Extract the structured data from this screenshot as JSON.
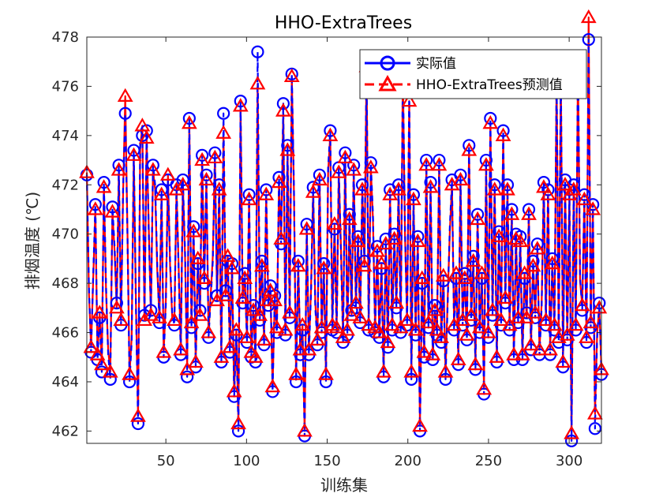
{
  "chart_data": {
    "type": "line",
    "title": "HHO-ExtraTrees",
    "xlabel": "训练集",
    "ylabel": "排烟温度 (℃)",
    "xlim": [
      1,
      320
    ],
    "ylim": [
      461.5,
      478
    ],
    "xticks": [
      50,
      100,
      150,
      200,
      250,
      300
    ],
    "yticks": [
      462,
      464,
      466,
      468,
      470,
      472,
      474,
      476,
      478
    ],
    "grid": false,
    "legend_position": "top-right",
    "colors": {
      "actual": "#0000ff",
      "predicted": "#ff0000"
    },
    "series": [
      {
        "name": "实际值",
        "style": "solid line with circle markers",
        "color": "#0000ff",
        "values": [
          472.4,
          467.8,
          465.2,
          468.4,
          471.2,
          464.9,
          466.6,
          464.4,
          472.1,
          467.9,
          465.1,
          464.1,
          471.1,
          469.5,
          467.2,
          472.8,
          466.3,
          471.9,
          474.9,
          470.1,
          464.0,
          465.6,
          473.4,
          467.0,
          462.3,
          473.7,
          474.0,
          466.7,
          474.2,
          470.1,
          466.9,
          472.8,
          472.0,
          468.7,
          466.4,
          471.8,
          465.0,
          467.1,
          472.2,
          468.9,
          466.8,
          466.3,
          472.0,
          468.5,
          465.1,
          472.2,
          469.3,
          464.2,
          474.7,
          466.2,
          470.3,
          464.6,
          468.8,
          466.9,
          473.2,
          468.0,
          472.4,
          465.8,
          467.3,
          468.9,
          473.3,
          467.5,
          472.0,
          464.8,
          474.9,
          467.7,
          468.9,
          465.2,
          468.8,
          463.4,
          465.9,
          462.0,
          475.4,
          467.2,
          468.4,
          465.6,
          471.6,
          465.0,
          467.1,
          464.8,
          477.4,
          466.5,
          468.9,
          465.5,
          471.8,
          467.1,
          467.9,
          463.6,
          467.5,
          466.0,
          472.3,
          469.6,
          475.3,
          465.9,
          473.6,
          466.6,
          476.5,
          471.9,
          464.0,
          468.9,
          465.1,
          466.1,
          461.8,
          470.4,
          465.1,
          467.6,
          471.9,
          467.0,
          465.5,
          472.4,
          466.0,
          468.8,
          464.0,
          472.7,
          474.2,
          466.1,
          470.2,
          466.0,
          472.7,
          469.3,
          465.6,
          473.3,
          465.9,
          470.8,
          466.9,
          472.8,
          467.0,
          469.9,
          466.4,
          472.0,
          468.9,
          476.9,
          466.1,
          472.9,
          470.8,
          466.0,
          469.5,
          465.8,
          468.6,
          464.2,
          469.8,
          465.4,
          471.8,
          466.1,
          470.0,
          467.0,
          472.0,
          466.0,
          476.7,
          470.2,
          466.3,
          475.9,
          464.1,
          471.6,
          465.9,
          469.9,
          462.0,
          468.0,
          465.0,
          473.0,
          466.2,
          472.1,
          464.9,
          467.1,
          465.9,
          473.0,
          465.6,
          468.1,
          464.1,
          467.2,
          470.3,
          472.2,
          466.1,
          468.2,
          464.7,
          472.4,
          466.3,
          468.4,
          465.7,
          473.6,
          466.5,
          469.1,
          464.5,
          470.8,
          466.0,
          468.2,
          463.5,
          473.0,
          465.8,
          474.7,
          466.7,
          472.0,
          464.8,
          470.1,
          466.3,
          474.2,
          467.2,
          472.0,
          466.1,
          471.0,
          464.9,
          470.0,
          466.4,
          469.9,
          464.9,
          468.2,
          466.8,
          471.0,
          465.3,
          468.9,
          466.6,
          469.6,
          465.1,
          467.0,
          472.1,
          466.3,
          471.8,
          465.1,
          469.0,
          466.1,
          476.5,
          465.6,
          476.7,
          464.6,
          472.2,
          465.7,
          471.8,
          461.6,
          472.0,
          466.1,
          477.2,
          468.3,
          466.9,
          471.6,
          465.6,
          477.9,
          466.2,
          471.2,
          462.1,
          465.8,
          467.2,
          464.3
        ],
        "x_note": "values sampled at evenly spaced training-set indices 1..320"
      },
      {
        "name": "HHO-ExtraTrees预测值",
        "style": "dashed line with triangle markers",
        "color": "#ff0000",
        "values": [
          472.5,
          467.6,
          465.4,
          468.2,
          471.0,
          465.1,
          466.8,
          464.7,
          471.9,
          467.7,
          465.3,
          464.4,
          470.9,
          469.3,
          467.0,
          472.6,
          466.5,
          471.7,
          475.6,
          470.3,
          464.3,
          465.8,
          473.2,
          467.2,
          462.6,
          473.5,
          474.4,
          466.5,
          473.9,
          470.3,
          466.7,
          472.6,
          471.8,
          468.5,
          466.6,
          471.6,
          465.2,
          467.3,
          472.4,
          468.7,
          466.6,
          466.5,
          471.8,
          468.7,
          465.3,
          472.0,
          469.1,
          464.5,
          474.5,
          466.4,
          470.1,
          464.8,
          469.0,
          466.7,
          473.0,
          468.2,
          472.2,
          466.0,
          467.5,
          469.1,
          473.1,
          467.3,
          471.8,
          465.0,
          474.1,
          467.5,
          469.1,
          465.4,
          468.6,
          463.6,
          466.1,
          462.3,
          475.2,
          467.4,
          468.2,
          465.8,
          471.4,
          465.2,
          466.9,
          465.0,
          476.1,
          466.7,
          468.7,
          465.7,
          471.6,
          467.3,
          467.7,
          463.8,
          467.3,
          466.2,
          472.1,
          469.8,
          475.0,
          466.1,
          473.4,
          466.8,
          476.4,
          471.7,
          464.3,
          468.7,
          465.3,
          466.3,
          462.0,
          470.2,
          465.3,
          467.8,
          471.7,
          467.2,
          465.7,
          472.2,
          466.2,
          468.6,
          464.3,
          472.5,
          474.0,
          466.3,
          470.4,
          466.2,
          472.5,
          469.5,
          465.8,
          473.1,
          466.1,
          470.6,
          466.7,
          472.6,
          467.2,
          469.7,
          466.6,
          471.8,
          468.7,
          476.8,
          466.3,
          472.7,
          470.6,
          466.2,
          469.3,
          466.0,
          468.8,
          464.4,
          469.6,
          465.6,
          471.6,
          466.3,
          469.8,
          467.2,
          471.8,
          466.2,
          476.6,
          470.0,
          466.5,
          475.4,
          464.4,
          471.4,
          466.1,
          469.7,
          462.2,
          468.2,
          465.2,
          472.8,
          466.4,
          471.9,
          465.1,
          466.9,
          466.1,
          472.8,
          465.8,
          468.3,
          464.4,
          467.4,
          470.1,
          472.0,
          466.3,
          468.4,
          464.9,
          472.2,
          466.5,
          468.2,
          465.9,
          473.4,
          466.7,
          468.9,
          464.7,
          470.6,
          466.2,
          468.4,
          463.7,
          472.8,
          466.0,
          474.5,
          466.9,
          471.8,
          465.0,
          469.9,
          466.5,
          474.0,
          467.4,
          471.8,
          466.3,
          470.8,
          465.1,
          469.8,
          466.6,
          469.7,
          465.1,
          468.4,
          466.6,
          470.8,
          465.5,
          468.7,
          466.8,
          469.4,
          465.3,
          467.2,
          471.9,
          466.5,
          471.6,
          465.3,
          468.8,
          466.3,
          476.3,
          465.8,
          476.4,
          464.8,
          472.0,
          465.9,
          471.6,
          461.9,
          471.8,
          466.3,
          476.8,
          468.1,
          467.1,
          471.4,
          465.8,
          478.8,
          466.4,
          471.0,
          462.7,
          466.0,
          467.0,
          464.5
        ]
      }
    ]
  }
}
